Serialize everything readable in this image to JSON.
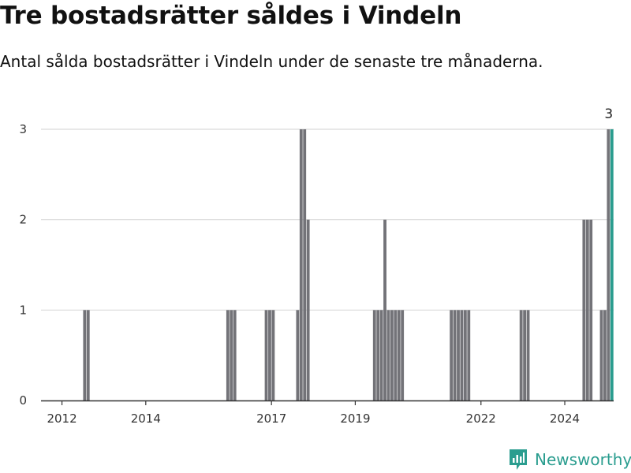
{
  "title": "Tre bostadsrätter såldes i Vindeln",
  "subtitle": "Antal sålda bostadsrätter i Vindeln under de senaste tre månaderna.",
  "brand": {
    "name": "Newsworthy",
    "color": "#2a9d8f",
    "icon": "newsworthy-logo-icon"
  },
  "colors": {
    "bar": "#737378",
    "highlight": "#2a9d8f",
    "grid": "#d9d9d9",
    "axis": "#333333"
  },
  "chart_data": {
    "type": "bar",
    "title": "Tre bostadsrätter såldes i Vindeln",
    "subtitle": "Antal sålda bostadsrätter i Vindeln under de senaste tre månaderna.",
    "xlabel": "",
    "ylabel": "",
    "ylim": [
      0,
      3
    ],
    "xlim": [
      "2011-07",
      "2025-03"
    ],
    "y_ticks": [
      0,
      1,
      2,
      3
    ],
    "x_ticks": [
      "2012",
      "2014",
      "2017",
      "2019",
      "2022",
      "2024"
    ],
    "x_tick_months": [
      "2012-01",
      "2014-01",
      "2017-01",
      "2019-01",
      "2022-01",
      "2024-01"
    ],
    "grid": true,
    "legend": "none",
    "series": [
      {
        "period": [
          "2012-07",
          "2012-08",
          "2015-12",
          "2016-01",
          "2016-02",
          "2016-11",
          "2016-12",
          "2017-01",
          "2017-08",
          "2017-09",
          "2017-10",
          "2017-11",
          "2019-06",
          "2019-07",
          "2019-08",
          "2019-09",
          "2019-10",
          "2019-11",
          "2019-12",
          "2020-01",
          "2020-02",
          "2021-04",
          "2021-05",
          "2021-06",
          "2021-07",
          "2021-08",
          "2021-09",
          "2022-12",
          "2023-01",
          "2023-02",
          "2024-06",
          "2024-07",
          "2024-08",
          "2024-11",
          "2024-12",
          "2025-01",
          "2025-02"
        ],
        "values": [
          1,
          1,
          1,
          1,
          1,
          1,
          1,
          1,
          1,
          3,
          3,
          2,
          1,
          1,
          1,
          2,
          1,
          1,
          1,
          1,
          1,
          1,
          1,
          1,
          1,
          1,
          1,
          1,
          1,
          1,
          2,
          2,
          2,
          1,
          1,
          3,
          3
        ]
      }
    ],
    "highlight": {
      "period": "2025-02",
      "value": 3,
      "label": "3"
    }
  }
}
